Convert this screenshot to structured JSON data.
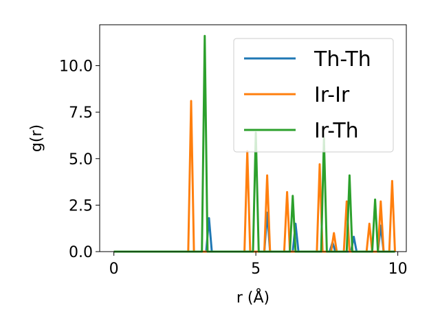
{
  "chart_data": {
    "type": "line",
    "xlabel": "r (Å)",
    "ylabel": "g(r)",
    "xlim": [
      -0.5,
      10.3
    ],
    "ylim": [
      0,
      12.2
    ],
    "xticks": [
      "0",
      "5",
      "10"
    ],
    "xtick_values": [
      0,
      5,
      10
    ],
    "yticks": [
      "0.0",
      "2.5",
      "5.0",
      "7.5",
      "10.0"
    ],
    "ytick_values": [
      0,
      2.5,
      5.0,
      7.5,
      10.0
    ],
    "grid": false,
    "legend": "top-right",
    "colors": {
      "Th-Th": "#1f77b4",
      "Ir-Ir": "#ff7f0e",
      "Ir-Th": "#2ca02c"
    },
    "x_range": [
      0,
      9.9
    ],
    "peak_half_width": 0.1,
    "series": [
      {
        "name": "Th-Th",
        "color": "#1f77b4",
        "peaks": [
          [
            3.35,
            1.8
          ],
          [
            5.4,
            2.1
          ],
          [
            6.4,
            1.5
          ],
          [
            7.7,
            0.5
          ],
          [
            8.45,
            0.8
          ],
          [
            9.4,
            1.4
          ]
        ]
      },
      {
        "name": "Ir-Ir",
        "color": "#ff7f0e",
        "peaks": [
          [
            2.72,
            8.1
          ],
          [
            4.7,
            5.4
          ],
          [
            5.4,
            4.1
          ],
          [
            6.1,
            3.2
          ],
          [
            7.25,
            4.7
          ],
          [
            7.75,
            1.0
          ],
          [
            8.2,
            2.7
          ],
          [
            9.0,
            1.5
          ],
          [
            9.4,
            2.7
          ],
          [
            9.8,
            3.8
          ]
        ]
      },
      {
        "name": "Ir-Th",
        "color": "#2ca02c",
        "peaks": [
          [
            3.2,
            11.6
          ],
          [
            5.0,
            6.4
          ],
          [
            6.3,
            3.0
          ],
          [
            7.4,
            6.1
          ],
          [
            8.3,
            4.1
          ],
          [
            9.2,
            2.8
          ]
        ]
      }
    ]
  }
}
